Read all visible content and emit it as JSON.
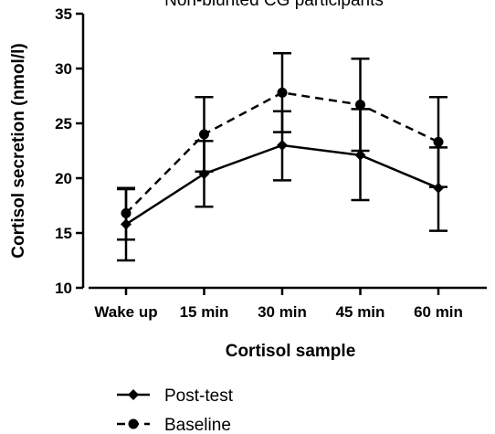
{
  "chart_data": {
    "type": "line",
    "title": "Non-blunted CG participants",
    "xlabel": "Cortisol sample",
    "ylabel": "Cortisol secretion (nmol/l)",
    "categories": [
      "Wake up",
      "15 min",
      "30 min",
      "45 min",
      "60 min"
    ],
    "ylim": [
      10,
      35
    ],
    "yticks": [
      10,
      15,
      20,
      25,
      30,
      35
    ],
    "grid": false,
    "legend_position": "bottom-left",
    "series": [
      {
        "name": "Post-test",
        "line_style": "solid",
        "marker": "diamond",
        "color": "#000000",
        "values": [
          15.8,
          20.4,
          23.0,
          22.1,
          19.1
        ],
        "error_low": [
          12.5,
          17.4,
          19.8,
          18.0,
          15.2
        ],
        "error_high": [
          19.0,
          23.4,
          26.1,
          26.3,
          22.8
        ]
      },
      {
        "name": "Baseline",
        "line_style": "dashed",
        "marker": "circle",
        "color": "#000000",
        "values": [
          16.8,
          24.0,
          27.8,
          26.7,
          23.3
        ],
        "error_low": [
          14.4,
          20.6,
          24.2,
          22.5,
          19.2
        ],
        "error_high": [
          19.1,
          27.4,
          31.4,
          30.9,
          27.4
        ]
      }
    ]
  }
}
